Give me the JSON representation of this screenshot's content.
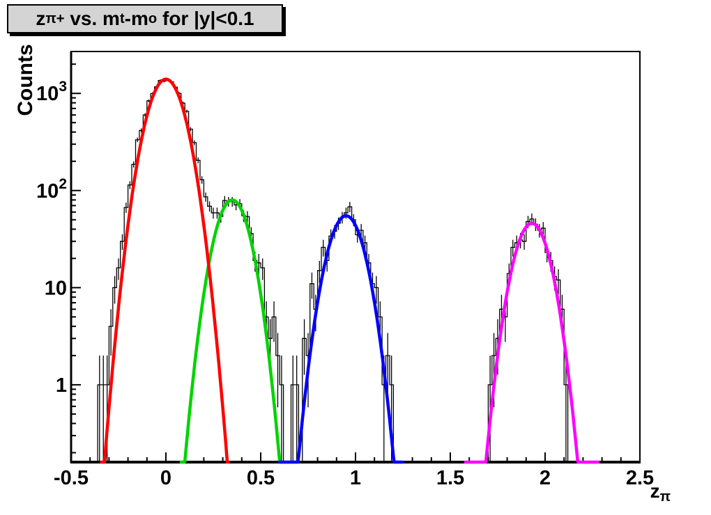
{
  "title": {
    "p1": "z",
    "s1": "π+",
    "p2": " vs. m",
    "s2": "t",
    "p3": "-m",
    "s3": "o",
    "p4": " for |y|<0.1"
  },
  "x_axis_title": {
    "base": "z",
    "sub": "π"
  },
  "y_axis_title": "Counts",
  "colors": {
    "frame": "#000000",
    "histogram": "#000000",
    "title_box_bg": "#d4d4d4",
    "fit1": "#ff0000",
    "fit2": "#00d300",
    "fit3": "#0000ff",
    "fit4": "#ff00ff"
  },
  "chart_data": {
    "type": "bar",
    "subtype": "histogram-with-gaussian-fits",
    "title": "z_π+ vs. m_t-m_o for |y|<0.1",
    "xlabel": "z_π",
    "ylabel": "Counts",
    "x_range": [
      -0.5,
      2.5
    ],
    "y_range": [
      0.16,
      2700
    ],
    "y_scale": "log",
    "grid": false,
    "legend": "none",
    "x_major_ticks": [
      -0.5,
      0,
      0.5,
      1,
      1.5,
      2,
      2.5
    ],
    "x_tick_labels": [
      "-0.5",
      "0",
      "0.5",
      "1",
      "1.5",
      "2",
      "2.5"
    ],
    "x_minor_step": 0.1,
    "y_major_ticks": [
      {
        "value": 1000,
        "base": "10",
        "exp": "3"
      },
      {
        "value": 100,
        "base": "10",
        "exp": "2"
      },
      {
        "value": 10,
        "base": "10",
        "exp": ""
      },
      {
        "value": 1,
        "base": "1",
        "exp": ""
      }
    ],
    "histogram": {
      "bin_width": 0.02,
      "color": "#000000",
      "seed": 20,
      "sigma_scale": 1.12,
      "note": "black stepped histogram with sqrt(N) error bars following the four peaks"
    },
    "fits": [
      {
        "name": "peak-1-red",
        "color": "#ff0000",
        "amplitude": 1400,
        "mean": 0.0,
        "sigma": 0.076,
        "draw_range": [
          -0.34,
          0.33
        ]
      },
      {
        "name": "peak-2-green",
        "color": "#00d300",
        "amplitude": 80,
        "mean": 0.35,
        "sigma": 0.071,
        "draw_range": [
          0.08,
          0.61
        ]
      },
      {
        "name": "peak-3-blue",
        "color": "#0000ff",
        "amplitude": 55,
        "mean": 0.95,
        "sigma": 0.074,
        "draw_range": [
          0.6,
          1.25
        ]
      },
      {
        "name": "peak-4-magenta",
        "color": "#ff00ff",
        "amplitude": 46,
        "mean": 1.93,
        "sigma": 0.072,
        "draw_range": [
          1.58,
          2.28
        ]
      }
    ],
    "peak_summary": [
      {
        "peak_center_z": 0.0,
        "peak_counts": 1400
      },
      {
        "peak_center_z": 0.35,
        "peak_counts": 80
      },
      {
        "peak_center_z": 0.95,
        "peak_counts": 55
      },
      {
        "peak_center_z": 1.93,
        "peak_counts": 46
      }
    ]
  }
}
